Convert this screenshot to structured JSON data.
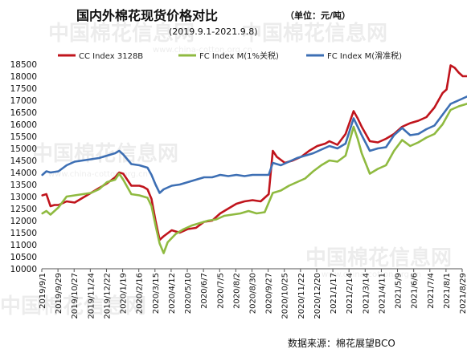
{
  "chart_data": {
    "type": "line",
    "title": "国内外棉花现货价格对比",
    "unit": "（单位：元/吨）",
    "subtitle": "(2019.9.1-2021.9.8)",
    "source": "数据来源：棉花展望BCO",
    "watermark": "中国棉花信息网",
    "watermark_url": "www.china-cotton.org.cn",
    "ylim": [
      10000,
      18500
    ],
    "yticks": [
      "18500",
      "18000",
      "17500",
      "17000",
      "16500",
      "16000",
      "15500",
      "15000",
      "14500",
      "14000",
      "13500",
      "13000",
      "12500",
      "12000",
      "11500",
      "11000",
      "10500",
      "10000"
    ],
    "xticks": [
      "2019/9/1",
      "2019/9/29",
      "2019/10/27",
      "2019/11/24",
      "2019/12/22",
      "2020/1/19",
      "2020/2/16",
      "2020/3/15",
      "2020/4/12",
      "2020/5/10",
      "2020/6/7",
      "2020/7/5",
      "2020/8/2",
      "2020/8/30",
      "2020/9/27",
      "2020/10/25",
      "2020/11/22",
      "2020/12/20",
      "2021/1/17",
      "2021/2/14",
      "2021/3/14",
      "2021/4/11",
      "2021/5/9",
      "2021/6/6",
      "2021/7/4",
      "2021/8/1",
      "2021/8/29"
    ],
    "legend_position": "top",
    "series": [
      {
        "name": "CC Index 3128B",
        "color": "#c0141c",
        "points": [
          [
            "2019/9/2",
            13050
          ],
          [
            "2019/9/9",
            13100
          ],
          [
            "2019/9/16",
            12600
          ],
          [
            "2019/9/23",
            12650
          ],
          [
            "2019/9/30",
            12650
          ],
          [
            "2019/10/14",
            12800
          ],
          [
            "2019/10/28",
            12750
          ],
          [
            "2019/11/11",
            12950
          ],
          [
            "2019/11/25",
            13150
          ],
          [
            "2019/12/9",
            13350
          ],
          [
            "2019/12/23",
            13550
          ],
          [
            "2020/1/6",
            13800
          ],
          [
            "2020/1/13",
            14000
          ],
          [
            "2020/1/20",
            13950
          ],
          [
            "2020/2/3",
            13450
          ],
          [
            "2020/2/17",
            13450
          ],
          [
            "2020/2/24",
            13400
          ],
          [
            "2020/3/2",
            13300
          ],
          [
            "2020/3/9",
            12900
          ],
          [
            "2020/3/16",
            12000
          ],
          [
            "2020/3/23",
            11200
          ],
          [
            "2020/3/30",
            11350
          ],
          [
            "2020/4/13",
            11600
          ],
          [
            "2020/4/27",
            11500
          ],
          [
            "2020/5/11",
            11650
          ],
          [
            "2020/5/25",
            11700
          ],
          [
            "2020/6/8",
            11950
          ],
          [
            "2020/6/22",
            12000
          ],
          [
            "2020/7/6",
            12300
          ],
          [
            "2020/7/20",
            12500
          ],
          [
            "2020/8/3",
            12700
          ],
          [
            "2020/8/17",
            12800
          ],
          [
            "2020/8/31",
            12850
          ],
          [
            "2020/9/14",
            12800
          ],
          [
            "2020/9/21",
            12950
          ],
          [
            "2020/9/28",
            13100
          ],
          [
            "2020/10/5",
            14900
          ],
          [
            "2020/10/12",
            14650
          ],
          [
            "2020/10/26",
            14400
          ],
          [
            "2020/11/9",
            14500
          ],
          [
            "2020/11/23",
            14650
          ],
          [
            "2020/12/7",
            14900
          ],
          [
            "2020/12/21",
            15100
          ],
          [
            "2021/1/4",
            15200
          ],
          [
            "2021/1/11",
            15300
          ],
          [
            "2021/1/25",
            15150
          ],
          [
            "2021/2/8",
            15600
          ],
          [
            "2021/2/22",
            16550
          ],
          [
            "2021/3/1",
            16250
          ],
          [
            "2021/3/8",
            15900
          ],
          [
            "2021/3/22",
            15300
          ],
          [
            "2021/4/5",
            15250
          ],
          [
            "2021/4/19",
            15400
          ],
          [
            "2021/5/3",
            15600
          ],
          [
            "2021/5/17",
            15900
          ],
          [
            "2021/5/31",
            16050
          ],
          [
            "2021/6/14",
            16150
          ],
          [
            "2021/6/28",
            16300
          ],
          [
            "2021/7/12",
            16700
          ],
          [
            "2021/7/26",
            17300
          ],
          [
            "2021/8/2",
            17450
          ],
          [
            "2021/8/9",
            18450
          ],
          [
            "2021/8/16",
            18350
          ],
          [
            "2021/8/23",
            18150
          ],
          [
            "2021/8/30",
            18000
          ],
          [
            "2021/9/6",
            18000
          ]
        ]
      },
      {
        "name": "FC Index M(1%关税)",
        "color": "#8fba40",
        "points": [
          [
            "2019/9/2",
            12300
          ],
          [
            "2019/9/9",
            12400
          ],
          [
            "2019/9/16",
            12250
          ],
          [
            "2019/9/30",
            12550
          ],
          [
            "2019/10/14",
            13000
          ],
          [
            "2019/10/28",
            13050
          ],
          [
            "2019/11/11",
            13100
          ],
          [
            "2019/11/25",
            13150
          ],
          [
            "2019/12/9",
            13300
          ],
          [
            "2019/12/23",
            13600
          ],
          [
            "2020/1/6",
            13700
          ],
          [
            "2020/1/13",
            13950
          ],
          [
            "2020/1/20",
            13700
          ],
          [
            "2020/2/3",
            13100
          ],
          [
            "2020/2/17",
            13050
          ],
          [
            "2020/3/2",
            12950
          ],
          [
            "2020/3/9",
            12600
          ],
          [
            "2020/3/16",
            11800
          ],
          [
            "2020/3/23",
            11050
          ],
          [
            "2020/3/30",
            10650
          ],
          [
            "2020/4/6",
            11100
          ],
          [
            "2020/4/20",
            11450
          ],
          [
            "2020/5/4",
            11650
          ],
          [
            "2020/5/18",
            11800
          ],
          [
            "2020/6/1",
            11900
          ],
          [
            "2020/6/15",
            12000
          ],
          [
            "2020/6/29",
            12050
          ],
          [
            "2020/7/13",
            12200
          ],
          [
            "2020/7/27",
            12250
          ],
          [
            "2020/8/10",
            12300
          ],
          [
            "2020/8/24",
            12400
          ],
          [
            "2020/9/7",
            12300
          ],
          [
            "2020/9/21",
            12350
          ],
          [
            "2020/10/5",
            13150
          ],
          [
            "2020/10/19",
            13250
          ],
          [
            "2020/11/2",
            13450
          ],
          [
            "2020/11/16",
            13600
          ],
          [
            "2020/11/30",
            13750
          ],
          [
            "2020/12/14",
            14050
          ],
          [
            "2020/12/28",
            14300
          ],
          [
            "2021/1/11",
            14500
          ],
          [
            "2021/1/25",
            14450
          ],
          [
            "2021/2/8",
            14700
          ],
          [
            "2021/2/22",
            15900
          ],
          [
            "2021/3/1",
            15400
          ],
          [
            "2021/3/8",
            14800
          ],
          [
            "2021/3/22",
            13950
          ],
          [
            "2021/4/5",
            14150
          ],
          [
            "2021/4/19",
            14300
          ],
          [
            "2021/5/3",
            14900
          ],
          [
            "2021/5/17",
            15350
          ],
          [
            "2021/5/31",
            15100
          ],
          [
            "2021/6/14",
            15250
          ],
          [
            "2021/6/28",
            15450
          ],
          [
            "2021/7/12",
            15600
          ],
          [
            "2021/7/26",
            16000
          ],
          [
            "2021/8/9",
            16600
          ],
          [
            "2021/8/23",
            16750
          ],
          [
            "2021/9/6",
            16850
          ]
        ]
      },
      {
        "name": "FC Index M(滑准税)",
        "color": "#3d6fb4",
        "points": [
          [
            "2019/9/2",
            13900
          ],
          [
            "2019/9/9",
            14050
          ],
          [
            "2019/9/16",
            14000
          ],
          [
            "2019/9/30",
            14050
          ],
          [
            "2019/10/14",
            14300
          ],
          [
            "2019/10/28",
            14450
          ],
          [
            "2019/11/11",
            14500
          ],
          [
            "2019/11/25",
            14550
          ],
          [
            "2019/12/9",
            14600
          ],
          [
            "2019/12/23",
            14700
          ],
          [
            "2020/1/6",
            14800
          ],
          [
            "2020/1/13",
            14900
          ],
          [
            "2020/1/20",
            14750
          ],
          [
            "2020/2/3",
            14350
          ],
          [
            "2020/2/17",
            14300
          ],
          [
            "2020/3/2",
            14200
          ],
          [
            "2020/3/9",
            13900
          ],
          [
            "2020/3/16",
            13500
          ],
          [
            "2020/3/23",
            13150
          ],
          [
            "2020/3/30",
            13300
          ],
          [
            "2020/4/13",
            13450
          ],
          [
            "2020/4/27",
            13500
          ],
          [
            "2020/5/11",
            13600
          ],
          [
            "2020/5/25",
            13700
          ],
          [
            "2020/6/8",
            13800
          ],
          [
            "2020/6/22",
            13800
          ],
          [
            "2020/7/6",
            13900
          ],
          [
            "2020/7/20",
            13850
          ],
          [
            "2020/8/3",
            13900
          ],
          [
            "2020/8/17",
            13850
          ],
          [
            "2020/8/31",
            13900
          ],
          [
            "2020/9/14",
            13900
          ],
          [
            "2020/9/28",
            13900
          ],
          [
            "2020/10/5",
            14400
          ],
          [
            "2020/10/19",
            14300
          ],
          [
            "2020/11/2",
            14450
          ],
          [
            "2020/11/16",
            14600
          ],
          [
            "2020/11/30",
            14700
          ],
          [
            "2020/12/14",
            14800
          ],
          [
            "2020/12/28",
            14950
          ],
          [
            "2021/1/11",
            15100
          ],
          [
            "2021/1/25",
            15000
          ],
          [
            "2021/2/8",
            15200
          ],
          [
            "2021/2/22",
            16250
          ],
          [
            "2021/3/1",
            15900
          ],
          [
            "2021/3/8",
            15550
          ],
          [
            "2021/3/22",
            14900
          ],
          [
            "2021/4/5",
            15000
          ],
          [
            "2021/4/19",
            15050
          ],
          [
            "2021/5/3",
            15550
          ],
          [
            "2021/5/17",
            15850
          ],
          [
            "2021/5/31",
            15550
          ],
          [
            "2021/6/14",
            15600
          ],
          [
            "2021/6/28",
            15800
          ],
          [
            "2021/7/12",
            15950
          ],
          [
            "2021/7/26",
            16400
          ],
          [
            "2021/8/9",
            16850
          ],
          [
            "2021/8/23",
            17000
          ],
          [
            "2021/9/6",
            17150
          ]
        ]
      }
    ]
  }
}
